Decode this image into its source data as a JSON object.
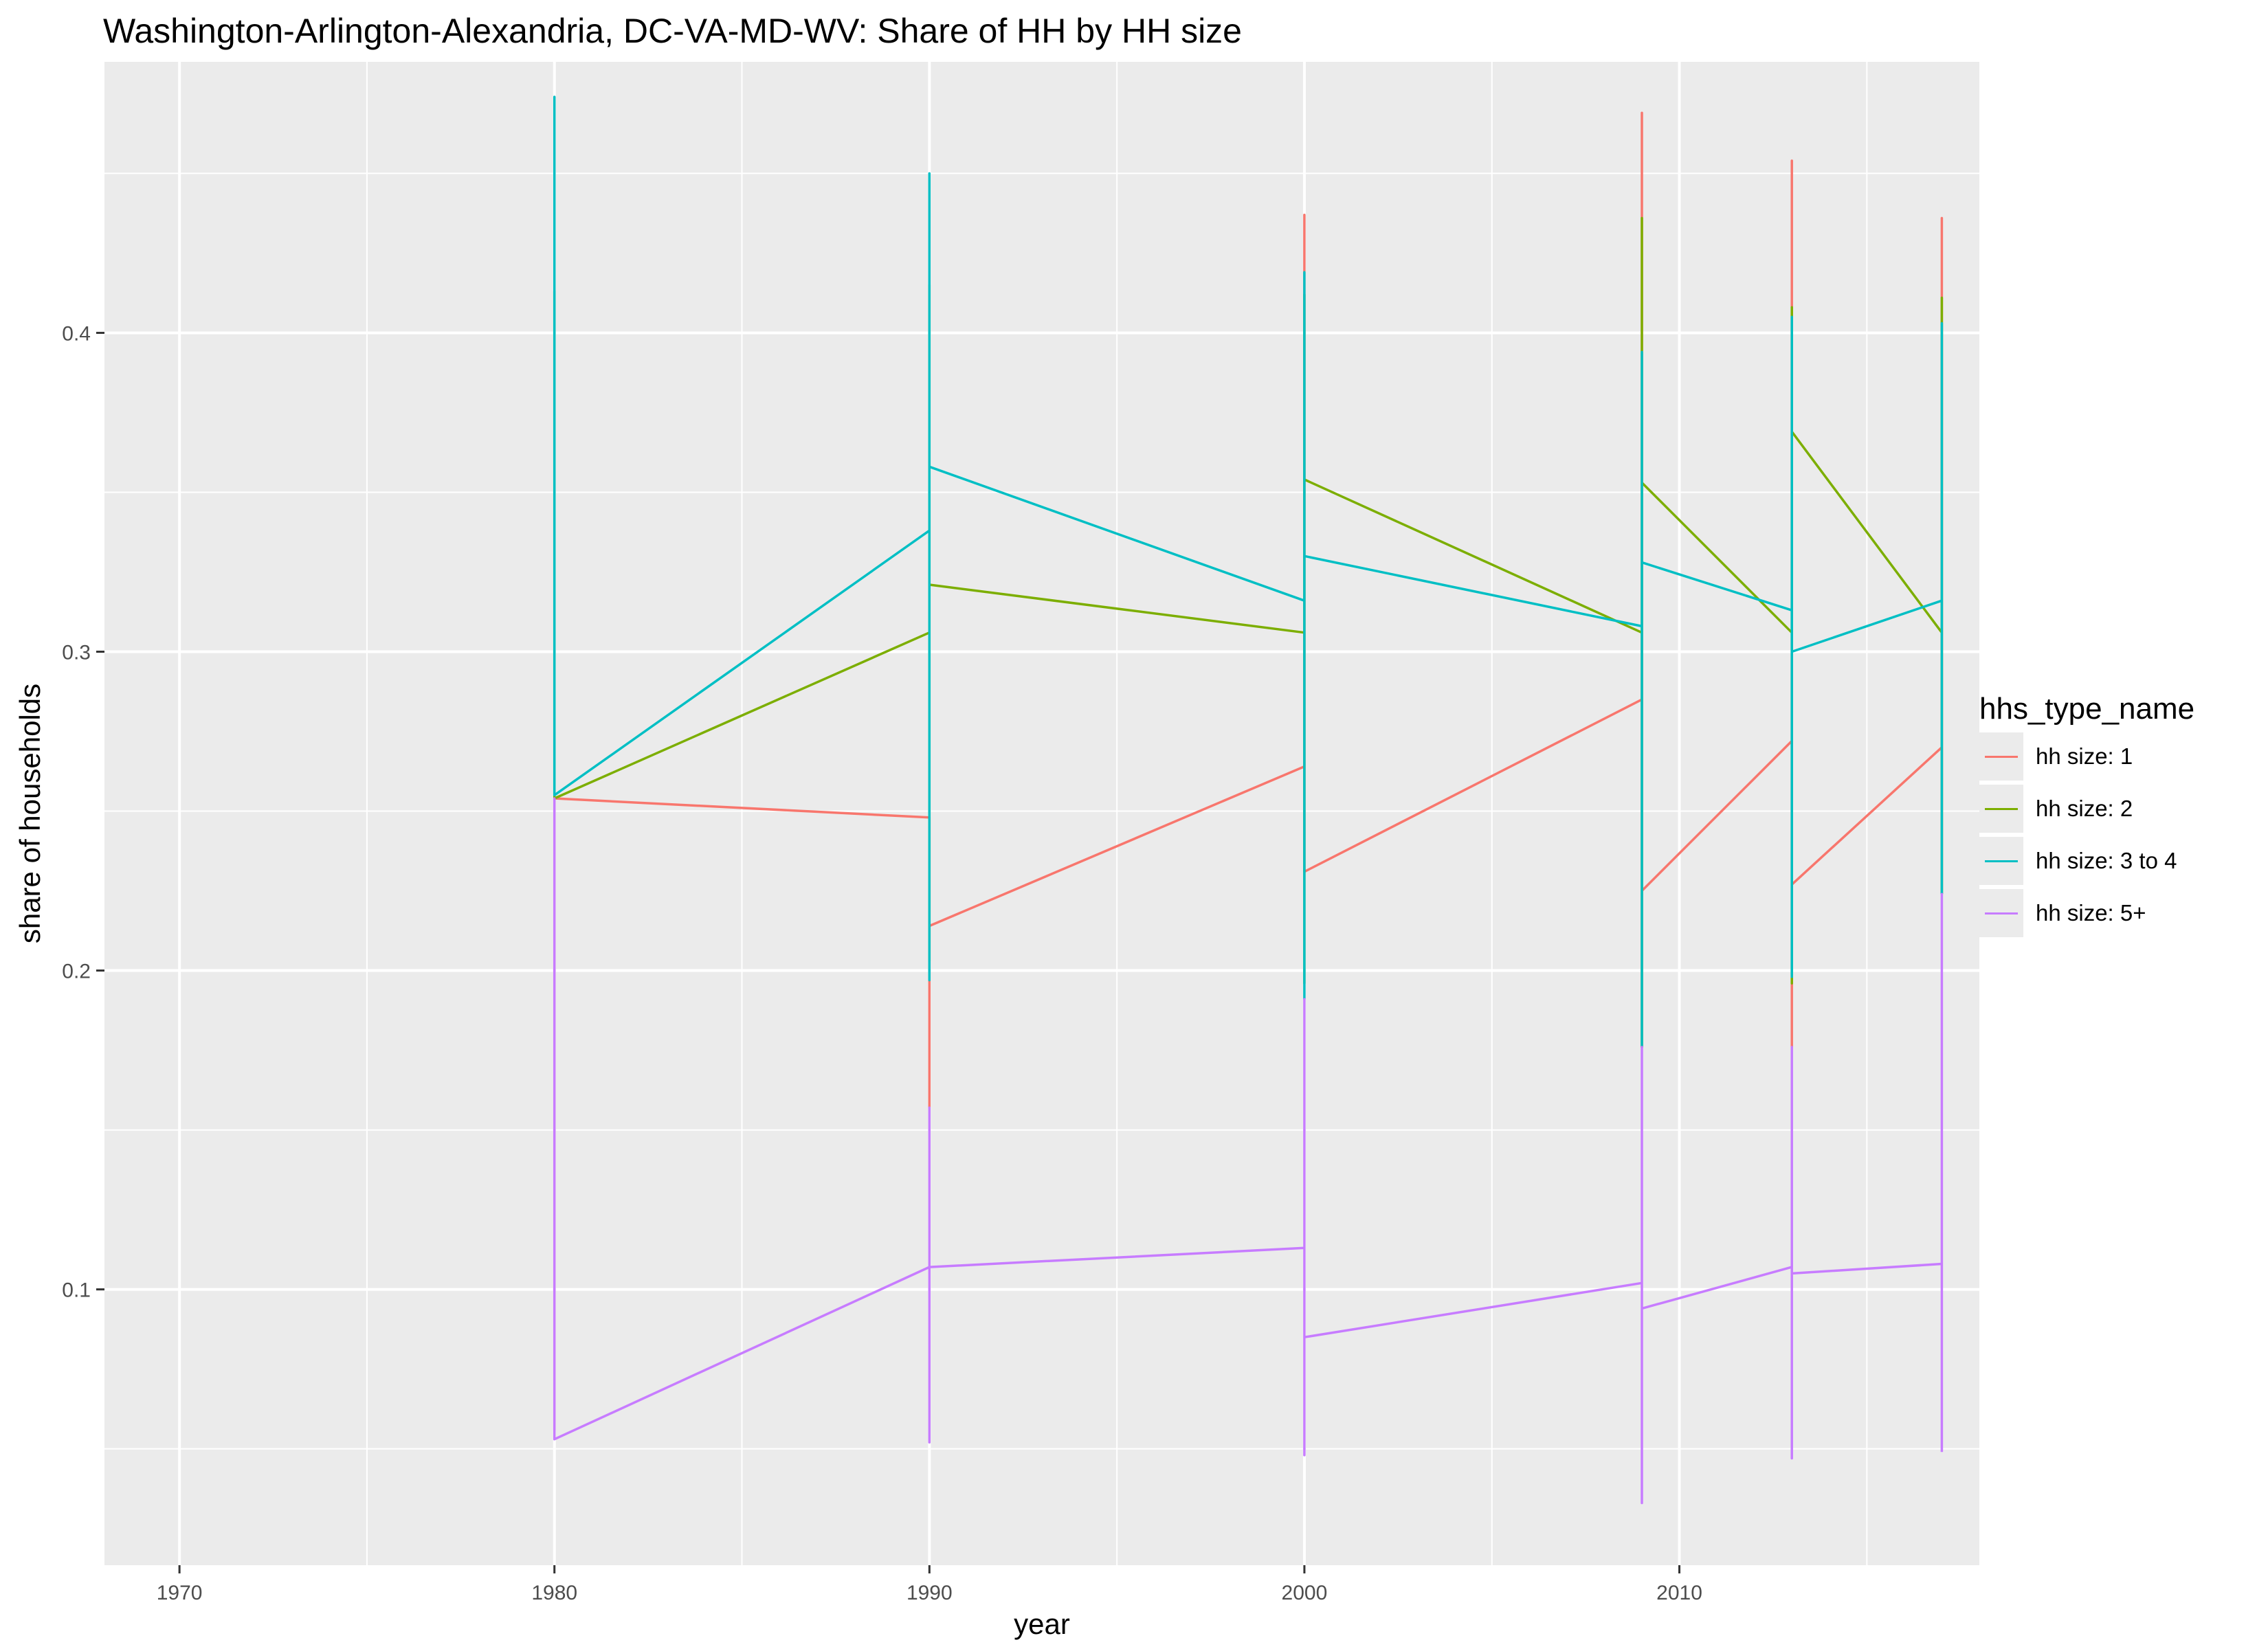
{
  "title": "Washington-Arlington-Alexandria, DC-VA-MD-WV: Share of HH by HH size",
  "chart_data": {
    "type": "line",
    "title": "Washington-Arlington-Alexandria, DC-VA-MD-WV: Share of HH by HH size",
    "xlabel": "year",
    "ylabel": "share of households",
    "xlim": [
      1968,
      2018
    ],
    "ylim": [
      0.0135,
      0.485
    ],
    "x_ticks": [
      1970,
      1980,
      1990,
      2000,
      2010
    ],
    "y_ticks": [
      0.1,
      0.2,
      0.3,
      0.4
    ],
    "x_tick_labels": [
      "1970",
      "1980",
      "1990",
      "2000",
      "2010"
    ],
    "y_tick_labels": [
      "0.1",
      "0.2",
      "0.3",
      "0.4"
    ],
    "grid": true,
    "background": "#ebebeb",
    "legend_title": "hhs_type_name",
    "legend_position": "right",
    "series": [
      {
        "name": "hh size: 1",
        "color": "#f8766d",
        "points": [
          [
            1980,
            0.185
          ],
          [
            1980,
            0.056
          ],
          [
            1980,
            0.254
          ],
          [
            1990,
            0.248
          ],
          [
            1990,
            0.157
          ],
          [
            1990,
            0.197
          ],
          [
            1990,
            0.214
          ],
          [
            2000,
            0.264
          ],
          [
            2000,
            0.437
          ],
          [
            2000,
            0.231
          ],
          [
            2009,
            0.285
          ],
          [
            2009,
            0.469
          ],
          [
            2009,
            0.176
          ],
          [
            2009,
            0.225
          ],
          [
            2013,
            0.272
          ],
          [
            2013,
            0.454
          ],
          [
            2013,
            0.176
          ],
          [
            2013,
            0.227
          ],
          [
            2017,
            0.27
          ],
          [
            2017,
            0.436
          ],
          [
            2017,
            0.224
          ]
        ]
      },
      {
        "name": "hh size: 2",
        "color": "#7cae00",
        "points": [
          [
            1980,
            0.312
          ],
          [
            1980,
            0.413
          ],
          [
            1980,
            0.254
          ],
          [
            1990,
            0.306
          ],
          [
            1990,
            0.415
          ],
          [
            1990,
            0.203
          ],
          [
            1990,
            0.321
          ],
          [
            2000,
            0.306
          ],
          [
            2000,
            0.412
          ],
          [
            2000,
            0.196
          ],
          [
            2000,
            0.354
          ],
          [
            2009,
            0.306
          ],
          [
            2009,
            0.436
          ],
          [
            2009,
            0.176
          ],
          [
            2009,
            0.353
          ],
          [
            2013,
            0.306
          ],
          [
            2013,
            0.408
          ],
          [
            2013,
            0.196
          ],
          [
            2013,
            0.369
          ],
          [
            2017,
            0.306
          ],
          [
            2017,
            0.411
          ],
          [
            2017,
            0.224
          ]
        ]
      },
      {
        "name": "hh size: 3 to 4",
        "color": "#00bfc4",
        "points": [
          [
            1980,
            0.35
          ],
          [
            1980,
            0.474
          ],
          [
            1980,
            0.255
          ],
          [
            1990,
            0.338
          ],
          [
            1990,
            0.45
          ],
          [
            1990,
            0.197
          ],
          [
            1990,
            0.358
          ],
          [
            2000,
            0.316
          ],
          [
            2000,
            0.419
          ],
          [
            2000,
            0.191
          ],
          [
            2000,
            0.33
          ],
          [
            2009,
            0.308
          ],
          [
            2009,
            0.394
          ],
          [
            2009,
            0.176
          ],
          [
            2009,
            0.328
          ],
          [
            2013,
            0.313
          ],
          [
            2013,
            0.405
          ],
          [
            2013,
            0.198
          ],
          [
            2013,
            0.3
          ],
          [
            2017,
            0.316
          ],
          [
            2017,
            0.403
          ],
          [
            2017,
            0.224
          ]
        ]
      },
      {
        "name": "hh size: 5+",
        "color": "#c77cff",
        "points": [
          [
            1980,
            0.152
          ],
          [
            1980,
            0.254
          ],
          [
            1980,
            0.053
          ],
          [
            1990,
            0.107
          ],
          [
            1990,
            0.157
          ],
          [
            1990,
            0.052
          ],
          [
            1990,
            0.107
          ],
          [
            2000,
            0.113
          ],
          [
            2000,
            0.191
          ],
          [
            2000,
            0.048
          ],
          [
            2000,
            0.085
          ],
          [
            2009,
            0.102
          ],
          [
            2009,
            0.176
          ],
          [
            2009,
            0.033
          ],
          [
            2009,
            0.094
          ],
          [
            2013,
            0.107
          ],
          [
            2013,
            0.176
          ],
          [
            2013,
            0.047
          ],
          [
            2013,
            0.105
          ],
          [
            2017,
            0.108
          ],
          [
            2017,
            0.224
          ],
          [
            2017,
            0.049
          ]
        ]
      }
    ]
  }
}
